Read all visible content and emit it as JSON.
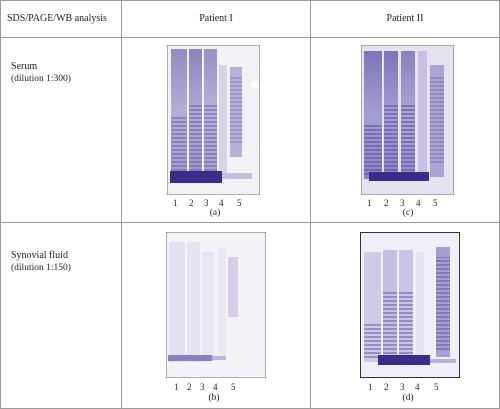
{
  "header": {
    "col0": "SDS/PAGE/WB analysis",
    "col1": "Patient I",
    "col2": "Patient II"
  },
  "rows": [
    {
      "label": "Serum",
      "dilution": "(dilution 1:300)"
    },
    {
      "label": "Synovial fluid",
      "dilution": "(dilution 1:150)"
    }
  ],
  "lane_labels": [
    "1",
    "2",
    "3",
    "4",
    "5"
  ],
  "panels": {
    "a": "(a)",
    "b": "(b)",
    "c": "(c)",
    "d": "(d)"
  },
  "colors": {
    "stain_strong": "#3a2d8a",
    "stain_medium": "#8f86c4",
    "stain_light": "#d8d3ea",
    "membrane": "#f2f1f6"
  }
}
